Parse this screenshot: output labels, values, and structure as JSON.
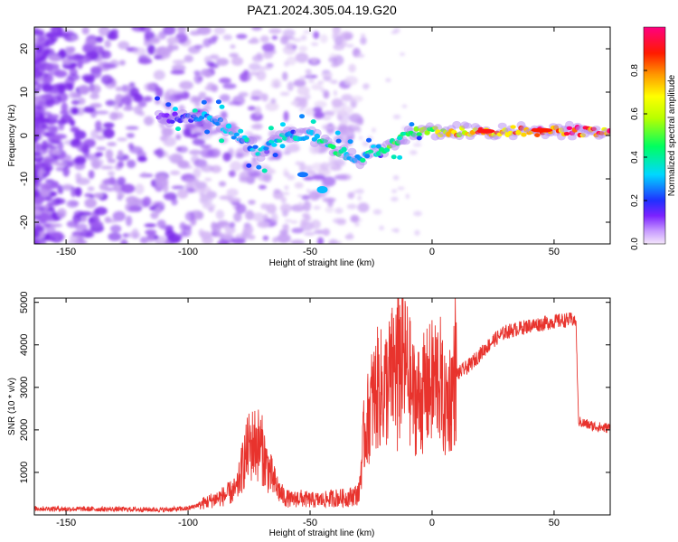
{
  "title": "PAZ1.2024.305.04.19.G20",
  "chart_data": [
    {
      "type": "heatmap",
      "xlabel": "Height of straight line (km)",
      "ylabel": "Frequency (Hz)",
      "xlim": [
        -163,
        73
      ],
      "ylim": [
        -25,
        25
      ],
      "x_ticks": [
        -150,
        -100,
        -50,
        0,
        50
      ],
      "y_ticks": [
        20,
        10,
        0,
        -10,
        -20
      ],
      "ridge": {
        "x": [
          -110,
          -100,
          -90,
          -80,
          -70,
          -60,
          -50,
          -40,
          -30,
          -25,
          -20,
          -15,
          -10,
          -5,
          0,
          10,
          20,
          30,
          40,
          50,
          60,
          70
        ],
        "frequency": [
          4,
          4,
          4,
          0,
          -4,
          0,
          0,
          -3,
          -6,
          -3,
          -4,
          -1,
          0,
          1,
          1,
          1,
          1,
          1,
          1,
          1,
          1,
          1
        ],
        "amplitude": [
          0.1,
          0.2,
          0.3,
          0.3,
          0.3,
          0.35,
          0.35,
          0.4,
          0.35,
          0.35,
          0.45,
          0.45,
          0.45,
          0.5,
          0.55,
          0.7,
          0.8,
          0.8,
          0.85,
          0.9,
          0.9,
          0.85
        ]
      },
      "colorbar": {
        "label": "Normalized spectral amplitude",
        "ticks": [
          "0.0",
          "0.2",
          "0.4",
          "0.6",
          "0.8"
        ],
        "range": [
          0,
          1
        ]
      }
    },
    {
      "type": "line",
      "xlabel": "Height of straight line (km)",
      "ylabel": "SNR (10 * v/v)",
      "xlim": [
        -163,
        73
      ],
      "ylim": [
        0,
        5100
      ],
      "x_ticks": [
        -150,
        -100,
        -50,
        0,
        50
      ],
      "y_ticks": [
        1000,
        2000,
        3000,
        4000,
        5000
      ],
      "color": "#e8332d",
      "x": [
        -163,
        -150,
        -120,
        -110,
        -100,
        -95,
        -90,
        -85,
        -80,
        -77,
        -75,
        -72,
        -70,
        -68,
        -65,
        -62,
        -60,
        -57,
        -55,
        -50,
        -45,
        -40,
        -35,
        -30,
        -28,
        -25,
        -22,
        -20,
        -18,
        -15,
        -13,
        -10,
        -8,
        -5,
        -3,
        0,
        3,
        5,
        8,
        10,
        15,
        20,
        25,
        30,
        40,
        50,
        58,
        59,
        60,
        65,
        70,
        73
      ],
      "values": [
        150,
        140,
        130,
        120,
        150,
        250,
        350,
        450,
        600,
        1300,
        1600,
        1700,
        1600,
        1200,
        800,
        500,
        400,
        350,
        400,
        350,
        350,
        400,
        400,
        500,
        1800,
        2600,
        3000,
        2900,
        3100,
        3500,
        3700,
        3400,
        2800,
        2700,
        2900,
        3100,
        3300,
        2500,
        2900,
        3300,
        3500,
        3800,
        4100,
        4300,
        4450,
        4550,
        4600,
        4500,
        2200,
        2100,
        2050,
        2050
      ]
    }
  ]
}
